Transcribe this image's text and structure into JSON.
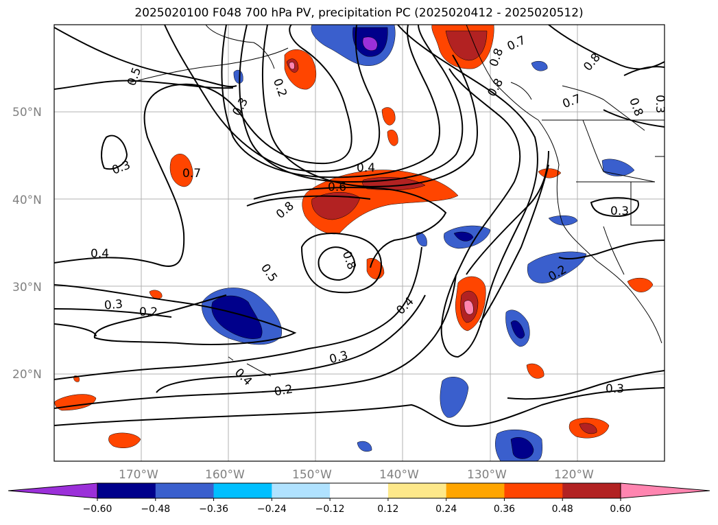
{
  "title": "2025020100 F048 700 hPa PV, precipitation PC (2025020412 - 2025020512)",
  "map": {
    "lon_range": [
      -180,
      -110
    ],
    "lat_range": [
      10,
      60
    ],
    "lat_ticks": [
      "20°N",
      "30°N",
      "40°N",
      "50°N"
    ],
    "lon_ticks": [
      "170°W",
      "160°W",
      "150°W",
      "140°W",
      "130°W",
      "120°W"
    ],
    "grid": true
  },
  "contour_labels": [
    "0.5",
    "0.2",
    "0.3",
    "0.3",
    "0.7",
    "0.4",
    "0.6",
    "0.8",
    "0.4",
    "0.3",
    "0.2",
    "0.5",
    "0.8",
    "0.4",
    "0.3",
    "0.4",
    "0.2",
    "0.3",
    "0.3",
    "0.2",
    "0.7",
    "0.8",
    "0.8",
    "0.7",
    "0.8",
    "0.8",
    "0.3"
  ],
  "colorbar": {
    "colors": [
      "#9b30d9",
      "#00008b",
      "#3a5fcd",
      "#00bfff",
      "#b0e2ff",
      "#ffffff",
      "#fde88a",
      "#ffa500",
      "#ff4500",
      "#b22222",
      "#ff85b0"
    ],
    "tick_labels": [
      "−0.60",
      "−0.48",
      "−0.36",
      "−0.24",
      "−0.12",
      "0.12",
      "0.24",
      "0.36",
      "0.48",
      "0.60"
    ]
  }
}
